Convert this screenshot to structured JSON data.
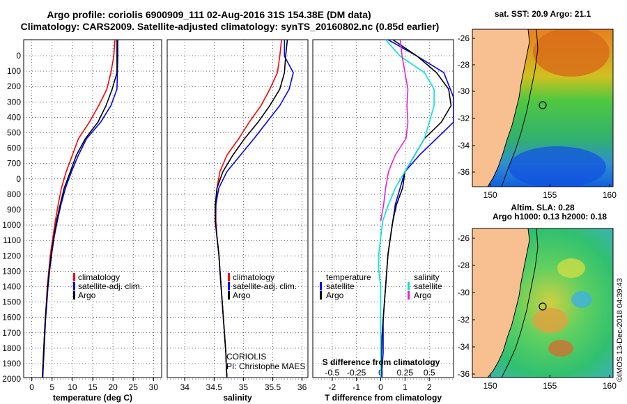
{
  "title": {
    "line1": "Argo profile: coriolis 6900909_111 02-Aug-2016 31S 154.38E (DM data)",
    "line2": "Climatology: CARS2009. Satellite-adjusted climatology: synTS_20160802.nc (0.85d earlier)"
  },
  "depth_ticks": [
    "0",
    "100",
    "200",
    "300",
    "400",
    "500",
    "600",
    "700",
    "0",
    "800",
    "900",
    "1000",
    "1100",
    "1200",
    "1300",
    "1400",
    "1500",
    "1600",
    "1700",
    "1800",
    "1900",
    "2000"
  ],
  "colors": {
    "climatology": "#ff0000",
    "satellite": "#0000ff",
    "argo": "#000000",
    "cyan": "#00e0e0",
    "magenta": "#e020e0",
    "land": "#f8c090"
  },
  "chart_data": [
    {
      "type": "line",
      "name": "temperature",
      "xlabel": "temperature (deg C)",
      "ylabel": "depth",
      "xlim": [
        -2,
        32
      ],
      "ylim": [
        2050,
        0
      ],
      "xticks": [
        "0",
        "5",
        "10",
        "15",
        "20",
        "25",
        "30"
      ],
      "legend": [
        "climatology",
        "satellite-adj. clim.",
        "Argo"
      ],
      "series": [
        {
          "name": "climatology",
          "points": [
            [
              20.5,
              0
            ],
            [
              20.2,
              100
            ],
            [
              19.5,
              200
            ],
            [
              18.5,
              300
            ],
            [
              16.5,
              400
            ],
            [
              14.2,
              500
            ],
            [
              11.5,
              600
            ],
            [
              10.0,
              700
            ],
            [
              8.5,
              800
            ],
            [
              7.3,
              900
            ],
            [
              6.5,
              1000
            ],
            [
              5.8,
              1100
            ],
            [
              5.2,
              1200
            ],
            [
              4.6,
              1300
            ],
            [
              4.2,
              1400
            ],
            [
              3.8,
              1500
            ],
            [
              3.6,
              1600
            ],
            [
              3.3,
              1700
            ],
            [
              3.1,
              1800
            ],
            [
              2.9,
              1900
            ],
            [
              2.7,
              2000
            ],
            [
              2.6,
              2050
            ]
          ]
        },
        {
          "name": "satellite-adj. clim.",
          "points": [
            [
              21.2,
              0
            ],
            [
              21.2,
              100
            ],
            [
              21.1,
              200
            ],
            [
              21.0,
              300
            ],
            [
              19.5,
              400
            ],
            [
              17.0,
              500
            ],
            [
              13.5,
              600
            ],
            [
              11.5,
              700
            ],
            [
              9.8,
              800
            ],
            [
              8.3,
              900
            ],
            [
              7.2,
              1000
            ],
            [
              6.3,
              1100
            ],
            [
              5.5,
              1200
            ],
            [
              4.9,
              1300
            ],
            [
              4.4,
              1400
            ],
            [
              4.0,
              1500
            ],
            [
              3.7,
              1600
            ],
            [
              3.4,
              1700
            ],
            [
              3.2,
              1800
            ],
            [
              3.0,
              1900
            ],
            [
              2.8,
              2000
            ],
            [
              2.7,
              2050
            ]
          ]
        },
        {
          "name": "Argo",
          "points": [
            [
              21.0,
              0
            ],
            [
              21.0,
              100
            ],
            [
              21.0,
              200
            ],
            [
              19.8,
              300
            ],
            [
              18.3,
              400
            ],
            [
              16.3,
              500
            ],
            [
              13.2,
              600
            ],
            [
              11.0,
              700
            ],
            [
              9.5,
              800
            ],
            [
              8.0,
              900
            ],
            [
              7.0,
              1000
            ],
            [
              6.1,
              1100
            ],
            [
              5.4,
              1200
            ],
            [
              4.8,
              1300
            ],
            [
              4.3,
              1400
            ],
            [
              3.9,
              1500
            ],
            [
              3.6,
              1600
            ],
            [
              3.3,
              1700
            ],
            [
              3.1,
              1800
            ],
            [
              2.9,
              1900
            ],
            [
              2.7,
              2000
            ],
            [
              2.6,
              2050
            ]
          ]
        }
      ]
    },
    {
      "type": "line",
      "name": "salinity",
      "xlabel": "salinity",
      "xlim": [
        33.7,
        36.1
      ],
      "ylim": [
        2050,
        0
      ],
      "xticks": [
        "34",
        "34.5",
        "35",
        "35.5",
        "36"
      ],
      "legend": [
        "climatology",
        "satellite-adj. clim.",
        "Argo"
      ],
      "annotations": [
        "CORIOLIS",
        "PI: Christophe MAES"
      ],
      "series": [
        {
          "name": "climatology",
          "points": [
            [
              35.65,
              0
            ],
            [
              35.62,
              100
            ],
            [
              35.58,
              200
            ],
            [
              35.45,
              300
            ],
            [
              35.3,
              400
            ],
            [
              35.1,
              500
            ],
            [
              34.92,
              600
            ],
            [
              34.72,
              700
            ],
            [
              34.6,
              800
            ],
            [
              34.55,
              900
            ],
            [
              34.53,
              1000
            ],
            [
              34.53,
              1100
            ],
            [
              34.55,
              1200
            ],
            [
              34.58,
              1300
            ],
            [
              34.6,
              1400
            ],
            [
              34.62,
              1500
            ],
            [
              34.64,
              1600
            ],
            [
              34.66,
              1700
            ],
            [
              34.68,
              1800
            ],
            [
              34.7,
              1900
            ],
            [
              34.71,
              2000
            ],
            [
              34.72,
              2050
            ]
          ]
        },
        {
          "name": "satellite-adj. clim.",
          "points": [
            [
              35.7,
              0
            ],
            [
              35.7,
              100
            ],
            [
              35.85,
              200
            ],
            [
              35.78,
              300
            ],
            [
              35.62,
              400
            ],
            [
              35.4,
              500
            ],
            [
              35.18,
              600
            ],
            [
              34.95,
              700
            ],
            [
              34.72,
              800
            ],
            [
              34.58,
              900
            ],
            [
              34.53,
              1000
            ],
            [
              34.52,
              1100
            ],
            [
              34.55,
              1200
            ],
            [
              34.58,
              1300
            ],
            [
              34.6,
              1400
            ],
            [
              34.62,
              1500
            ],
            [
              34.64,
              1600
            ],
            [
              34.66,
              1700
            ],
            [
              34.68,
              1800
            ],
            [
              34.7,
              1900
            ],
            [
              34.71,
              2000
            ],
            [
              34.72,
              2050
            ]
          ]
        },
        {
          "name": "Argo",
          "points": [
            [
              35.75,
              0
            ],
            [
              35.72,
              100
            ],
            [
              35.7,
              200
            ],
            [
              35.62,
              300
            ],
            [
              35.45,
              400
            ],
            [
              35.25,
              500
            ],
            [
              35.02,
              600
            ],
            [
              34.82,
              700
            ],
            [
              34.65,
              800
            ],
            [
              34.55,
              900
            ],
            [
              34.52,
              1000
            ],
            [
              34.52,
              1100
            ],
            [
              34.55,
              1200
            ],
            [
              34.58,
              1300
            ],
            [
              34.6,
              1400
            ],
            [
              34.62,
              1500
            ],
            [
              34.64,
              1600
            ],
            [
              34.66,
              1700
            ],
            [
              34.68,
              1800
            ],
            [
              34.7,
              1900
            ],
            [
              34.71,
              2000
            ],
            [
              34.72,
              2050
            ]
          ]
        }
      ]
    },
    {
      "type": "line",
      "name": "difference",
      "xlabel": "T difference from climatology",
      "xlabel_top": "S difference from climatology",
      "xlim": [
        -2.8,
        3.0
      ],
      "ylim": [
        2050,
        0
      ],
      "xticks": [
        "-2",
        "-1",
        "0",
        "1",
        "2"
      ],
      "xticks_top": [
        "-0.5",
        "-0.25",
        "0",
        "0.25",
        "0.5"
      ],
      "legend_left_title": "temperature",
      "legend_right_title": "salinity",
      "legend_left": [
        "satellite",
        "Argo"
      ],
      "legend_right": [
        "satellite",
        "Argo"
      ],
      "series": [
        {
          "name": "T satellite",
          "points": [
            [
              0.3,
              0
            ],
            [
              1.5,
              100
            ],
            [
              2.6,
              200
            ],
            [
              3.0,
              350
            ],
            [
              3.0,
              500
            ],
            [
              2.3,
              600
            ],
            [
              1.6,
              700
            ],
            [
              1.0,
              800
            ],
            [
              0.8,
              900
            ],
            [
              0.6,
              1000
            ],
            [
              0.5,
              1100
            ],
            [
              0.4,
              1200
            ],
            [
              0.3,
              1300
            ],
            [
              0.25,
              1400
            ],
            [
              0.2,
              1500
            ],
            [
              0.15,
              1600
            ],
            [
              0.1,
              1700
            ],
            [
              0.1,
              1800
            ],
            [
              0.1,
              1900
            ],
            [
              0.05,
              2000
            ],
            [
              0.05,
              2050
            ]
          ]
        },
        {
          "name": "T Argo",
          "points": [
            [
              0.5,
              0
            ],
            [
              1.5,
              100
            ],
            [
              2.3,
              200
            ],
            [
              2.8,
              300
            ],
            [
              2.9,
              400
            ],
            [
              2.5,
              500
            ],
            [
              1.8,
              600
            ],
            [
              1.4,
              700
            ],
            [
              1.0,
              800
            ],
            [
              0.9,
              900
            ],
            [
              0.65,
              1000
            ],
            [
              0.5,
              1100
            ],
            [
              0.4,
              1200
            ],
            [
              0.3,
              1300
            ],
            [
              0.25,
              1400
            ],
            [
              0.2,
              1500
            ],
            [
              0.15,
              1600
            ],
            [
              0.1,
              1700
            ],
            [
              0.05,
              1800
            ],
            [
              0.03,
              1900
            ],
            [
              0.02,
              2000
            ],
            [
              0.0,
              2050
            ]
          ]
        },
        {
          "name": "S satellite",
          "points": [
            [
              0.05,
              0
            ],
            [
              0.2,
              100
            ],
            [
              0.45,
              200
            ],
            [
              0.55,
              300
            ],
            [
              0.55,
              400
            ],
            [
              0.5,
              500
            ],
            [
              0.45,
              600
            ],
            [
              0.35,
              700
            ],
            [
              0.25,
              800
            ],
            [
              0.15,
              900
            ],
            [
              0.08,
              1000
            ],
            [
              0.02,
              1100
            ],
            [
              0.0,
              1200
            ],
            [
              -0.02,
              1300
            ],
            [
              -0.02,
              1400
            ],
            [
              0.0,
              1500
            ],
            [
              0.0,
              1600
            ],
            [
              0.0,
              1700
            ],
            [
              0.0,
              1800
            ],
            [
              0.0,
              1900
            ],
            [
              0.0,
              2000
            ],
            [
              0.0,
              2050
            ]
          ]
        },
        {
          "name": "S Argo",
          "points": [
            [
              0.2,
              0
            ],
            [
              0.22,
              100
            ],
            [
              0.25,
              200
            ],
            [
              0.28,
              300
            ],
            [
              0.27,
              400
            ],
            [
              0.28,
              500
            ],
            [
              0.26,
              600
            ],
            [
              0.15,
              700
            ],
            [
              0.08,
              800
            ],
            [
              0.05,
              900
            ],
            [
              0.03,
              1000
            ],
            [
              0.0,
              1100
            ]
          ]
        }
      ]
    }
  ],
  "maps": [
    {
      "name": "sst-map",
      "title": "sat. SST: 20.9 Argo: 21.1",
      "xticks": [
        "150",
        "155",
        "160"
      ],
      "yticks": [
        "-26",
        "-28",
        "-30",
        "-32",
        "-34",
        "-36"
      ]
    },
    {
      "name": "sla-map",
      "title1": "Altim. SLA: 0.28",
      "title2": "Argo h1000: 0.13 h2000: 0.18",
      "xticks": [
        "150",
        "155",
        "160"
      ],
      "yticks": [
        "-26",
        "-28",
        "-30",
        "-32",
        "-34",
        "-36"
      ]
    }
  ],
  "footer": "©IMOS 13-Dec-2018 04:39:43"
}
